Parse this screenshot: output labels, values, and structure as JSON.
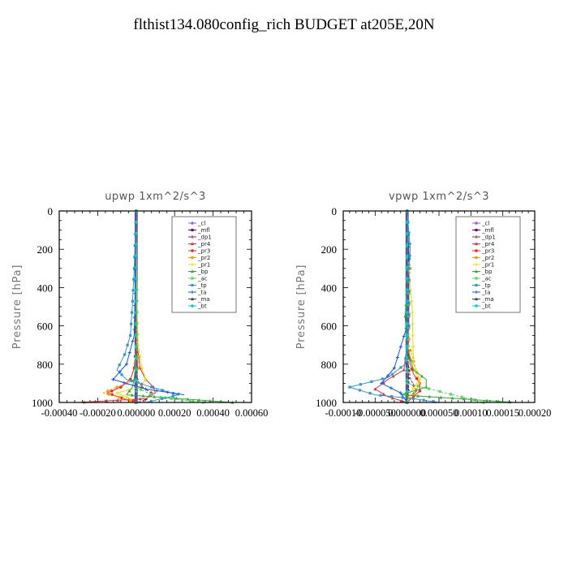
{
  "page": {
    "title": "flthist134.080config_rich  BUDGET at205E,20N"
  },
  "legend_labels": [
    "_cl",
    "_mfl",
    "_dp1",
    "_pr4",
    "_pr3",
    "_pr2",
    "_pr1",
    "_bp",
    "_ac",
    "_tp",
    "_ta",
    "_ma",
    "_bt"
  ],
  "legend_colors": [
    "#9966cc",
    "#800080",
    "#a0204a",
    "#e03040",
    "#ff2020",
    "#ff9900",
    "#eedd00",
    "#33aa33",
    "#55dd55",
    "#3399cc",
    "#1155ff",
    "#444444",
    "#00cccc"
  ],
  "chart_data": [
    {
      "type": "line",
      "title": "upwp   1xm^2/s^3",
      "xlabel": "",
      "ylabel": "Pressure [hPa]",
      "xlim": [
        -0.0004,
        0.0006
      ],
      "ylim": [
        1000,
        0
      ],
      "xticks": [
        "-0.00040",
        "-0.00020",
        "0.000000",
        "0.00020",
        "0.00040",
        "0.00060"
      ],
      "yticks": [
        "0",
        "200",
        "400",
        "600",
        "800",
        "1000"
      ],
      "legend_position": "top-right",
      "series": [
        {
          "name": "_cl",
          "x": [
            0,
            0
          ],
          "y": [
            0,
            1000
          ]
        },
        {
          "name": "_mfl",
          "x": [
            0,
            0
          ],
          "y": [
            0,
            1000
          ]
        },
        {
          "name": "_dp1",
          "x": [
            0,
            0,
            2e-06,
            5e-06,
            3e-05,
            8e-05,
            5e-05,
            1e-05
          ],
          "y": [
            0,
            700,
            800,
            880,
            920,
            950,
            985,
            1000
          ]
        },
        {
          "name": "_pr4",
          "x": [
            0,
            5e-06,
            2e-05,
            5e-05,
            9e-05,
            0.0001,
            5e-05,
            -0.0003
          ],
          "y": [
            0,
            700,
            820,
            880,
            920,
            950,
            980,
            1000
          ]
        },
        {
          "name": "_pr3",
          "x": [
            0,
            0,
            -1e-05,
            -3e-05,
            -8e-05,
            -0.00015,
            -5e-05,
            2e-05
          ],
          "y": [
            0,
            700,
            820,
            880,
            920,
            950,
            985,
            1000
          ]
        },
        {
          "name": "_pr2",
          "x": [
            0,
            5e-06,
            1e-05,
            0,
            -0.0001,
            -0.00017,
            -6e-05,
            0
          ],
          "y": [
            0,
            700,
            820,
            880,
            920,
            950,
            980,
            1000
          ]
        },
        {
          "name": "_pr1",
          "x": [
            0,
            5e-06,
            1e-05,
            3e-05,
            5e-05,
            2e-05,
            -0.0001,
            -2e-05
          ],
          "y": [
            0,
            500,
            700,
            820,
            880,
            920,
            950,
            985
          ]
        },
        {
          "name": "_bp",
          "x": [
            0,
            0,
            -5e-06,
            -1e-05,
            -2e-05,
            -5e-05,
            0.0005
          ],
          "y": [
            0,
            700,
            820,
            880,
            920,
            960,
            1000
          ]
        },
        {
          "name": "_ac",
          "x": [
            0,
            0,
            0,
            0.0001,
            0.00035
          ],
          "y": [
            0,
            800,
            920,
            970,
            1000
          ]
        },
        {
          "name": "_tp",
          "x": [
            0,
            -1e-05,
            -2e-05,
            -3e-05,
            -6e-05,
            -0.0001,
            -5e-05,
            8e-05,
            0.00022,
            5e-05
          ],
          "y": [
            0,
            300,
            500,
            650,
            750,
            830,
            880,
            920,
            960,
            1000
          ]
        },
        {
          "name": "_ta",
          "x": [
            0,
            -5e-06,
            -1e-05,
            -5e-05,
            -0.00012,
            5e-05,
            0.00025
          ],
          "y": [
            0,
            400,
            650,
            800,
            880,
            930,
            960
          ]
        },
        {
          "name": "_ma",
          "x": [
            0,
            0,
            3e-06,
            0
          ],
          "y": [
            0,
            700,
            900,
            1000
          ]
        },
        {
          "name": "_bt",
          "x": [
            0,
            0
          ],
          "y": [
            0,
            1000
          ]
        }
      ]
    },
    {
      "type": "line",
      "title": "vpwp   1xm^2/s^3",
      "xlabel": "",
      "ylabel": "Pressure [hPa]",
      "xlim": [
        -0.0001,
        0.0002
      ],
      "ylim": [
        1000,
        0
      ],
      "xticks": [
        "-0.00010",
        "-0.000050",
        "0.000000",
        "0.000050",
        "0.00010",
        "0.00015",
        "0.00020"
      ],
      "yticks": [
        "0",
        "200",
        "400",
        "600",
        "800",
        "1000"
      ],
      "legend_position": "top-right",
      "series": [
        {
          "name": "_cl",
          "x": [
            0,
            0
          ],
          "y": [
            0,
            1000
          ]
        },
        {
          "name": "_mfl",
          "x": [
            0,
            0
          ],
          "y": [
            0,
            1000
          ]
        },
        {
          "name": "_dp1",
          "x": [
            0,
            0,
            2e-06,
            5e-06,
            1e-05,
            1.5e-05,
            5e-06,
            0
          ],
          "y": [
            0,
            700,
            800,
            870,
            910,
            940,
            970,
            1000
          ]
        },
        {
          "name": "_pr4",
          "x": [
            0,
            0,
            -5e-06,
            -3e-05,
            -5e-05,
            -3e-05,
            0
          ],
          "y": [
            0,
            700,
            830,
            880,
            930,
            970,
            1000
          ]
        },
        {
          "name": "_pr3",
          "x": [
            0,
            0,
            5e-06,
            1e-05,
            2e-05,
            2e-05,
            1e-05,
            0
          ],
          "y": [
            0,
            700,
            800,
            850,
            900,
            940,
            970,
            1000
          ]
        },
        {
          "name": "_pr2",
          "x": [
            0,
            3e-06,
            5e-06,
            3e-06,
            3e-06,
            2e-05,
            1e-05,
            0
          ],
          "y": [
            0,
            200,
            300,
            400,
            700,
            900,
            960,
            1000
          ]
        },
        {
          "name": "_pr1",
          "x": [
            0,
            5e-06,
            2e-06,
            8e-06,
            1e-05,
            2e-05,
            5e-06,
            0
          ],
          "y": [
            0,
            250,
            300,
            500,
            800,
            880,
            950,
            1000
          ]
        },
        {
          "name": "_bp",
          "x": [
            0,
            0,
            -3e-06,
            0,
            1e-05,
            3e-05,
            3e-05,
            -1e-05,
            0.00017
          ],
          "y": [
            0,
            400,
            550,
            700,
            830,
            880,
            920,
            960,
            1000
          ]
        },
        {
          "name": "_ac",
          "x": [
            0,
            0,
            0.00012
          ],
          "y": [
            0,
            900,
            1000
          ]
        },
        {
          "name": "_tp",
          "x": [
            0,
            5e-06,
            3e-06,
            3e-06,
            -3e-06,
            -3e-05,
            -9e-05,
            -5e-05,
            1e-05,
            5e-05
          ],
          "y": [
            0,
            200,
            300,
            600,
            800,
            870,
            920,
            960,
            980,
            1000
          ]
        },
        {
          "name": "_ta",
          "x": [
            0,
            3e-06,
            0,
            0,
            -2e-05,
            -4e-05,
            -1e-05,
            0
          ],
          "y": [
            0,
            250,
            300,
            600,
            820,
            900,
            950,
            1000
          ]
        },
        {
          "name": "_ma",
          "x": [
            0,
            0,
            3e-06,
            0
          ],
          "y": [
            0,
            700,
            900,
            1000
          ]
        },
        {
          "name": "_bt",
          "x": [
            0,
            0
          ],
          "y": [
            0,
            1000
          ]
        }
      ]
    }
  ]
}
